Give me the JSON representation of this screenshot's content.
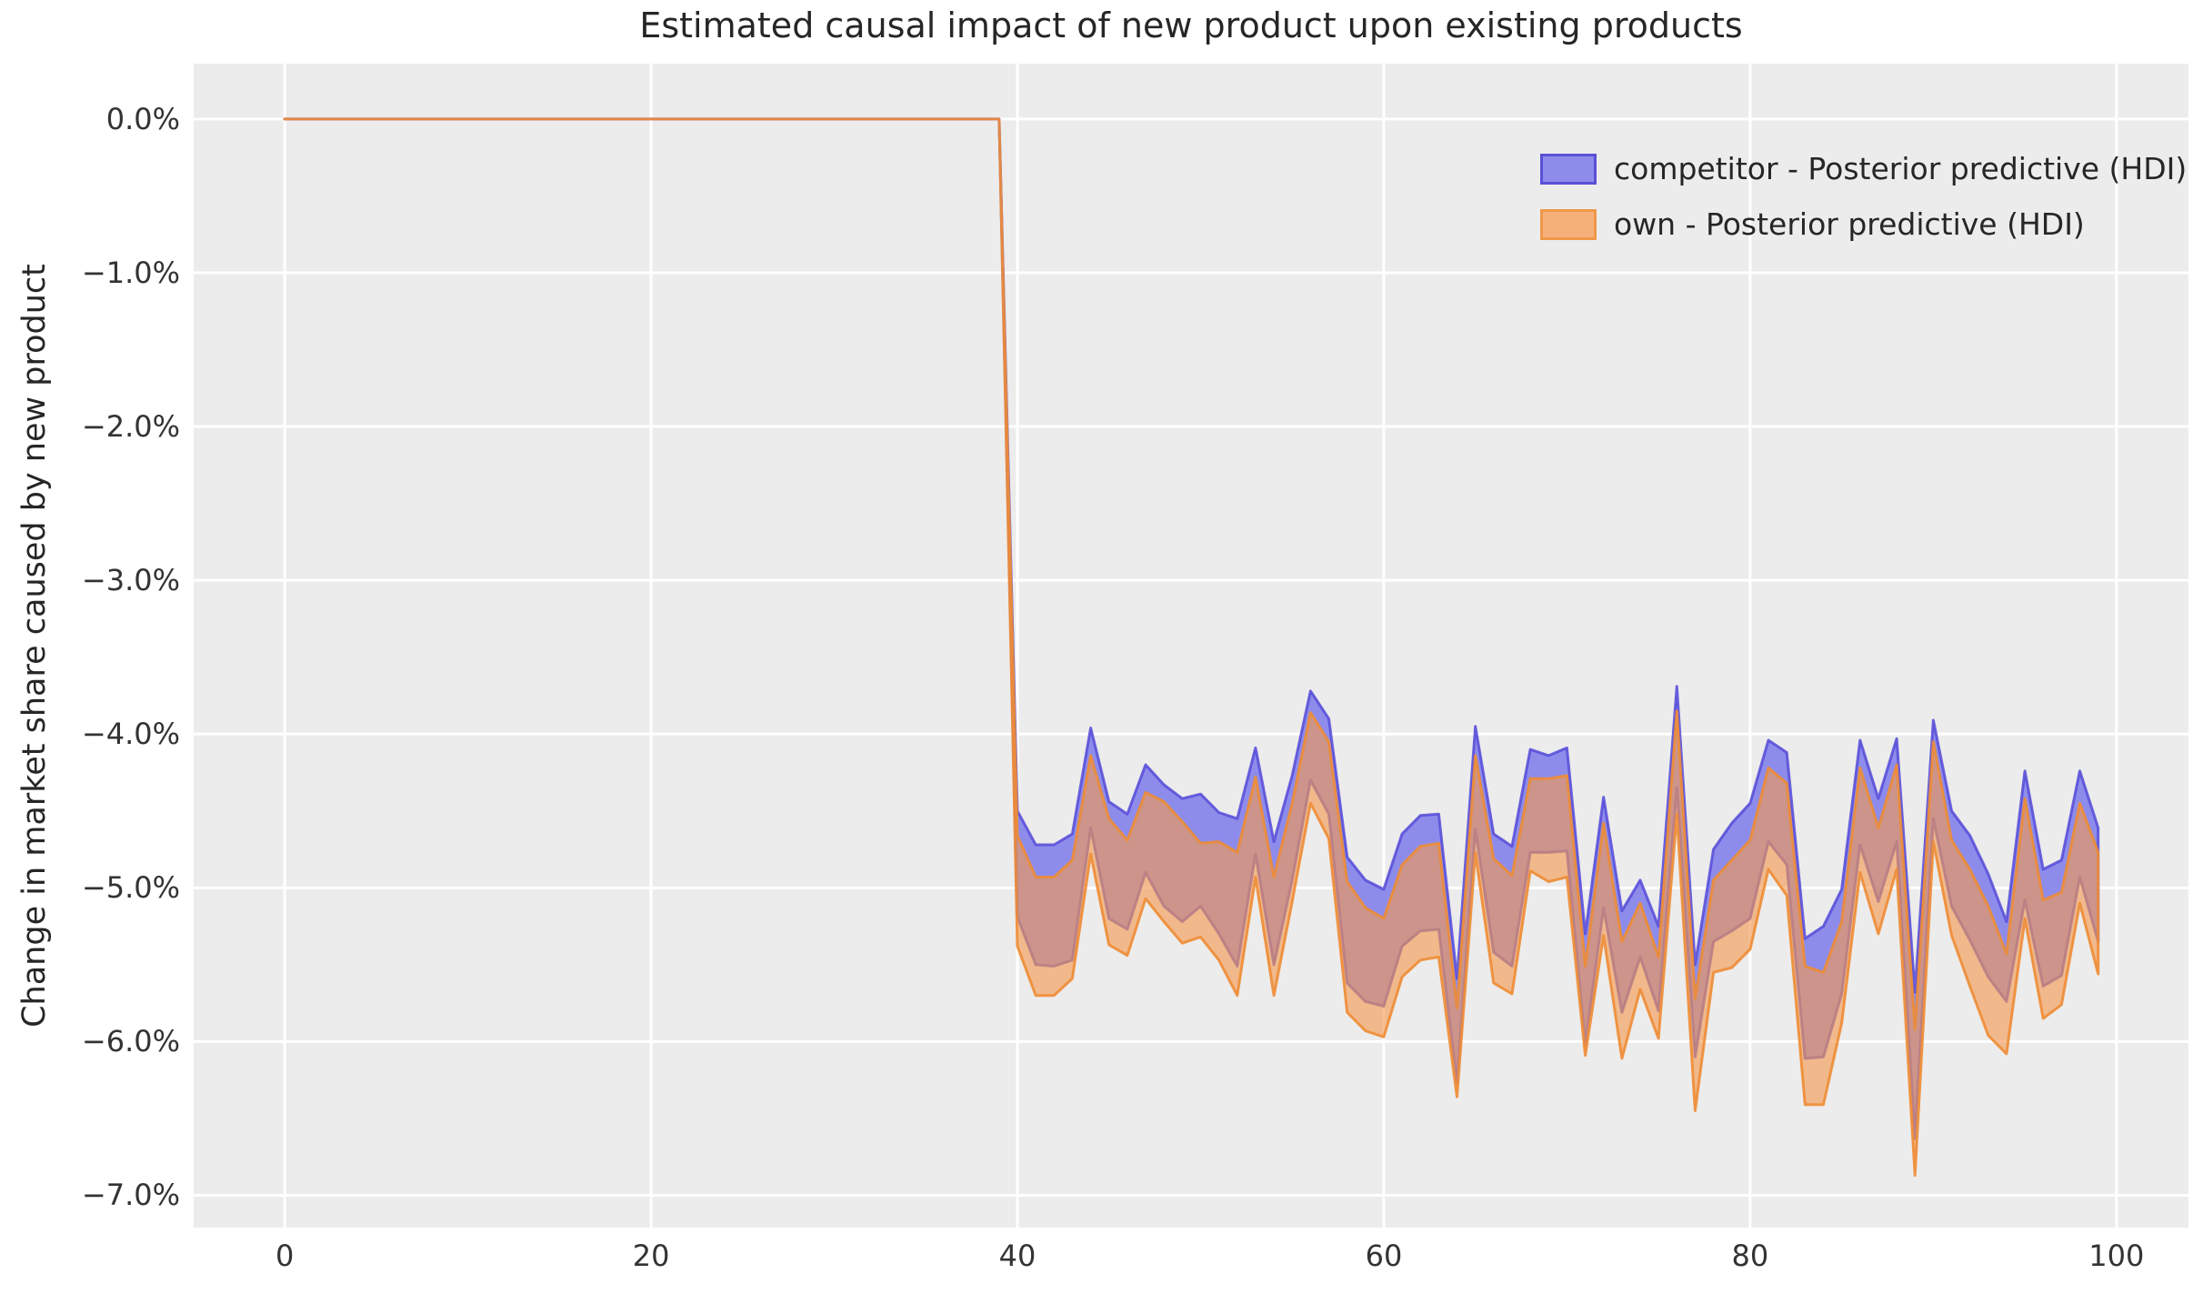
{
  "title": "Estimated causal impact of new product upon existing products",
  "axes": {
    "ylabel": "Change in market share caused by new product",
    "x_ticks": [
      0,
      20,
      40,
      60,
      80,
      100
    ],
    "y_tick_values": [
      0,
      -1,
      -2,
      -3,
      -4,
      -5,
      -6,
      -7
    ],
    "y_tick_labels": [
      "0.0%",
      "−1.0%",
      "−2.0%",
      "−3.0%",
      "−4.0%",
      "−5.0%",
      "−6.0%",
      "−7.0%"
    ]
  },
  "legend": {
    "items": [
      {
        "label": "competitor - Posterior predictive (HDI)",
        "fill": "#8d8ceb",
        "edge": "#5b50d6"
      },
      {
        "label": "own - Posterior predictive (HDI)",
        "fill": "#f5b07a",
        "edge": "#ef9849"
      }
    ]
  },
  "style": {
    "figure_bg": "#ffffff",
    "axes_bg": "#ececec",
    "grid_color": "#ffffff",
    "text_color": "#262626",
    "tick_color": "#333333"
  },
  "chart_data": {
    "type": "area",
    "title": "Estimated causal impact of new product upon existing products",
    "xlabel": "",
    "ylabel": "Change in market share caused by new product",
    "xlim": [
      -4.97,
      103.93
    ],
    "ylim_top": 0.36,
    "ylim_bottom": -7.21,
    "grid": true,
    "legend_position": "upper right",
    "intervention_x": 39,
    "x": [
      0,
      1,
      2,
      3,
      4,
      5,
      6,
      7,
      8,
      9,
      10,
      11,
      12,
      13,
      14,
      15,
      16,
      17,
      18,
      19,
      20,
      21,
      22,
      23,
      24,
      25,
      26,
      27,
      28,
      29,
      30,
      31,
      32,
      33,
      34,
      35,
      36,
      37,
      38,
      39,
      40,
      41,
      42,
      43,
      44,
      45,
      46,
      47,
      48,
      49,
      50,
      51,
      52,
      53,
      54,
      55,
      56,
      57,
      58,
      59,
      60,
      61,
      62,
      63,
      64,
      65,
      66,
      67,
      68,
      69,
      70,
      71,
      72,
      73,
      74,
      75,
      76,
      77,
      78,
      79,
      80,
      81,
      82,
      83,
      84,
      85,
      86,
      87,
      88,
      89,
      90,
      91,
      92,
      93,
      94,
      95,
      96,
      97,
      98,
      99
    ],
    "series": [
      {
        "name": "competitor - Posterior predictive (HDI)",
        "fill": "#8d8ceb",
        "fill_alpha": 1.0,
        "edge": "#554ad8",
        "edge_alpha": 0.85,
        "upper": [
          0,
          0,
          0,
          0,
          0,
          0,
          0,
          0,
          0,
          0,
          0,
          0,
          0,
          0,
          0,
          0,
          0,
          0,
          0,
          0,
          0,
          0,
          0,
          0,
          0,
          0,
          0,
          0,
          0,
          0,
          0,
          0,
          0,
          0,
          0,
          0,
          0,
          0,
          0,
          0,
          -4.5,
          -4.72,
          -4.72,
          -4.65,
          -3.96,
          -4.44,
          -4.52,
          -4.2,
          -4.33,
          -4.42,
          -4.39,
          -4.51,
          -4.55,
          -4.09,
          -4.7,
          -4.27,
          -3.72,
          -3.9,
          -4.8,
          -4.95,
          -5.01,
          -4.65,
          -4.53,
          -4.52,
          -5.59,
          -3.95,
          -4.65,
          -4.73,
          -4.1,
          -4.14,
          -4.09,
          -5.3,
          -4.41,
          -5.15,
          -4.95,
          -5.25,
          -3.69,
          -5.5,
          -4.75,
          -4.58,
          -4.45,
          -4.04,
          -4.12,
          -5.33,
          -5.25,
          -5.01,
          -4.04,
          -4.42,
          -4.03,
          -5.68,
          -3.91,
          -4.5,
          -4.66,
          -4.91,
          -5.22,
          -4.24,
          -4.88,
          -4.82,
          -4.24,
          -4.61
        ],
        "lower": [
          0,
          0,
          0,
          0,
          0,
          0,
          0,
          0,
          0,
          0,
          0,
          0,
          0,
          0,
          0,
          0,
          0,
          0,
          0,
          0,
          0,
          0,
          0,
          0,
          0,
          0,
          0,
          0,
          0,
          0,
          0,
          0,
          0,
          0,
          0,
          0,
          0,
          0,
          0,
          0,
          -5.19,
          -5.5,
          -5.51,
          -5.47,
          -4.61,
          -5.2,
          -5.27,
          -4.9,
          -5.12,
          -5.22,
          -5.12,
          -5.3,
          -5.51,
          -4.78,
          -5.5,
          -4.95,
          -4.3,
          -4.52,
          -5.62,
          -5.74,
          -5.77,
          -5.38,
          -5.28,
          -5.27,
          -6.27,
          -4.62,
          -5.42,
          -5.51,
          -4.77,
          -4.77,
          -4.76,
          -6.02,
          -5.13,
          -5.81,
          -5.45,
          -5.8,
          -4.35,
          -6.1,
          -5.35,
          -5.28,
          -5.2,
          -4.7,
          -4.85,
          -6.11,
          -6.1,
          -5.69,
          -4.72,
          -5.09,
          -4.7,
          -6.63,
          -4.55,
          -5.12,
          -5.34,
          -5.58,
          -5.74,
          -5.08,
          -5.64,
          -5.57,
          -4.93,
          -5.35
        ]
      },
      {
        "name": "own - Posterior predictive (HDI)",
        "fill": "#f49a4f",
        "fill_alpha": 0.62,
        "edge": "#ee8c35",
        "edge_alpha": 0.9,
        "upper": [
          0,
          0,
          0,
          0,
          0,
          0,
          0,
          0,
          0,
          0,
          0,
          0,
          0,
          0,
          0,
          0,
          0,
          0,
          0,
          0,
          0,
          0,
          0,
          0,
          0,
          0,
          0,
          0,
          0,
          0,
          0,
          0,
          0,
          0,
          0,
          0,
          0,
          0,
          0,
          0,
          -4.66,
          -4.93,
          -4.93,
          -4.82,
          -4.14,
          -4.55,
          -4.69,
          -4.38,
          -4.44,
          -4.57,
          -4.71,
          -4.7,
          -4.77,
          -4.28,
          -4.93,
          -4.45,
          -3.86,
          -4.05,
          -4.96,
          -5.13,
          -5.2,
          -4.85,
          -4.73,
          -4.71,
          -5.78,
          -4.14,
          -4.81,
          -4.92,
          -4.29,
          -4.29,
          -4.27,
          -5.51,
          -4.58,
          -5.35,
          -5.1,
          -5.45,
          -3.85,
          -5.72,
          -4.95,
          -4.82,
          -4.69,
          -4.22,
          -4.32,
          -5.51,
          -5.55,
          -5.22,
          -4.22,
          -4.61,
          -4.2,
          -5.92,
          -4.05,
          -4.69,
          -4.88,
          -5.12,
          -5.43,
          -4.42,
          -5.08,
          -5.03,
          -4.45,
          -4.77
        ],
        "lower": [
          0,
          0,
          0,
          0,
          0,
          0,
          0,
          0,
          0,
          0,
          0,
          0,
          0,
          0,
          0,
          0,
          0,
          0,
          0,
          0,
          0,
          0,
          0,
          0,
          0,
          0,
          0,
          0,
          0,
          0,
          0,
          0,
          0,
          0,
          0,
          0,
          0,
          0,
          0,
          0,
          -5.38,
          -5.7,
          -5.7,
          -5.59,
          -4.78,
          -5.37,
          -5.44,
          -5.07,
          -5.22,
          -5.36,
          -5.32,
          -5.47,
          -5.7,
          -4.93,
          -5.7,
          -5.09,
          -4.45,
          -4.68,
          -5.81,
          -5.93,
          -5.97,
          -5.58,
          -5.47,
          -5.45,
          -6.36,
          -4.77,
          -5.62,
          -5.69,
          -4.89,
          -4.96,
          -4.93,
          -6.09,
          -5.31,
          -6.11,
          -5.66,
          -5.98,
          -4.52,
          -6.45,
          -5.55,
          -5.52,
          -5.4,
          -4.88,
          -5.05,
          -6.41,
          -6.41,
          -5.88,
          -4.9,
          -5.3,
          -4.88,
          -6.87,
          -4.7,
          -5.31,
          -5.64,
          -5.96,
          -6.08,
          -5.2,
          -5.85,
          -5.76,
          -5.1,
          -5.56
        ]
      }
    ]
  }
}
